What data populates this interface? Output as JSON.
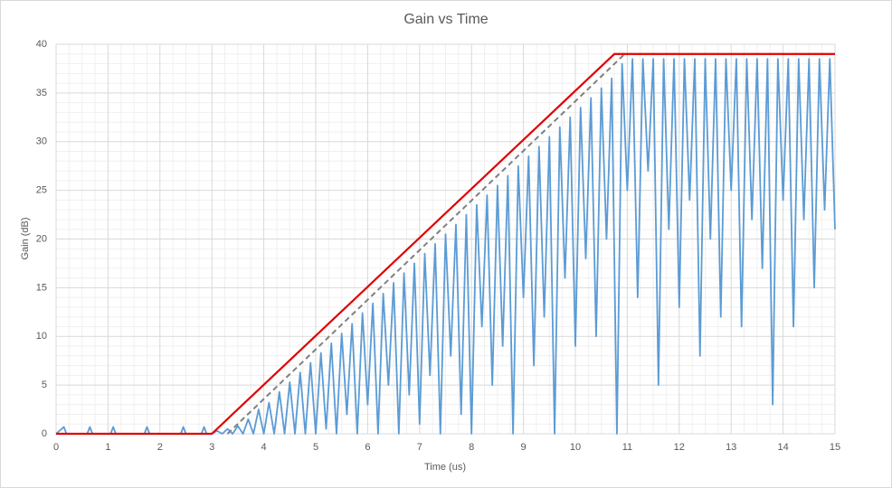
{
  "chart_data": {
    "type": "line",
    "title": "Gain vs Time",
    "x_label": "Time (us)",
    "y_label": "Gain (dB)",
    "xlim": [
      0,
      15
    ],
    "xticks": [
      0,
      1,
      2,
      3,
      4,
      5,
      6,
      7,
      8,
      9,
      10,
      11,
      12,
      13,
      14,
      15
    ],
    "ylim": [
      0,
      40
    ],
    "yticks": [
      0,
      5,
      10,
      15,
      20,
      25,
      30,
      35,
      40
    ],
    "grid": true,
    "minor_grid": true,
    "series": [
      {
        "color": "#5b9bd5",
        "dash": false,
        "x": [
          0,
          0.15,
          0.2,
          0.6,
          0.65,
          0.7,
          1.05,
          1.1,
          1.15,
          1.7,
          1.75,
          1.8,
          2.4,
          2.45,
          2.5,
          2.8,
          2.85,
          2.9,
          3.0,
          3.1,
          3.2,
          3.3,
          3.4,
          3.5,
          3.6,
          3.7,
          3.8,
          3.9,
          4.0,
          4.1,
          4.2,
          4.3,
          4.4,
          4.5,
          4.6,
          4.7,
          4.8,
          4.9,
          5.0,
          5.1,
          5.2,
          5.3,
          5.4,
          5.5,
          5.6,
          5.7,
          5.8,
          5.9,
          6.0,
          6.1,
          6.2,
          6.3,
          6.4,
          6.5,
          6.6,
          6.7,
          6.8,
          6.9,
          7.0,
          7.1,
          7.2,
          7.3,
          7.4,
          7.5,
          7.6,
          7.7,
          7.8,
          7.9,
          8.0,
          8.1,
          8.2,
          8.3,
          8.4,
          8.5,
          8.6,
          8.7,
          8.8,
          8.9,
          9.0,
          9.1,
          9.2,
          9.3,
          9.4,
          9.5,
          9.6,
          9.7,
          9.8,
          9.9,
          10.0,
          10.1,
          10.2,
          10.3,
          10.4,
          10.5,
          10.6,
          10.7,
          10.8,
          10.9,
          11.0,
          11.1,
          11.2,
          11.3,
          11.4,
          11.5,
          11.6,
          11.7,
          11.8,
          11.9,
          12.0,
          12.1,
          12.2,
          12.3,
          12.4,
          12.5,
          12.6,
          12.7,
          12.8,
          12.9,
          13.0,
          13.1,
          13.2,
          13.3,
          13.4,
          13.5,
          13.6,
          13.7,
          13.8,
          13.9,
          14.0,
          14.1,
          14.2,
          14.3,
          14.4,
          14.5,
          14.6,
          14.7,
          14.8,
          14.9,
          15.0
        ],
        "values": [
          0,
          0.7,
          0,
          0,
          0.7,
          0,
          0,
          0.7,
          0,
          0,
          0.7,
          0,
          0,
          0.7,
          0,
          0,
          0.7,
          0,
          0,
          0.3,
          0,
          0.5,
          0,
          0.8,
          0,
          1.5,
          0,
          2.5,
          0,
          3.2,
          0,
          4.3,
          0,
          5.3,
          0,
          6.3,
          0,
          7.3,
          0,
          8.3,
          0.5,
          9.3,
          0,
          10.3,
          2,
          11.3,
          0,
          12.4,
          3,
          13.4,
          0,
          14.4,
          5,
          15.5,
          0,
          16.5,
          4,
          17.5,
          1,
          18.5,
          6,
          19.5,
          0,
          20.5,
          8,
          21.5,
          2,
          22.5,
          0,
          23.5,
          11,
          24.5,
          5,
          25.5,
          9,
          26.5,
          0,
          27.5,
          14,
          28.5,
          7,
          29.5,
          12,
          30.5,
          0,
          31.5,
          16,
          32.5,
          9,
          33.5,
          18,
          34.5,
          10,
          35.5,
          20,
          36.5,
          0,
          38,
          25,
          38.5,
          14,
          38.5,
          27,
          38.5,
          5,
          38.5,
          21,
          38.5,
          13,
          38.5,
          24,
          38.5,
          8,
          38.5,
          20,
          38.5,
          12,
          38.5,
          25,
          38.5,
          11,
          38.5,
          22,
          38.5,
          17,
          38.5,
          3,
          38.5,
          24,
          38.5,
          11,
          38.5,
          22,
          38.5,
          15,
          38.5,
          23,
          38.5,
          21
        ]
      },
      {
        "color": "#808080",
        "dash": true,
        "x": [
          3.3,
          10.95
        ],
        "values": [
          0,
          39
        ]
      },
      {
        "color": "#e00000",
        "dash": false,
        "x": [
          0,
          3,
          10.75,
          15
        ],
        "values": [
          0,
          0,
          39,
          39
        ]
      }
    ]
  }
}
